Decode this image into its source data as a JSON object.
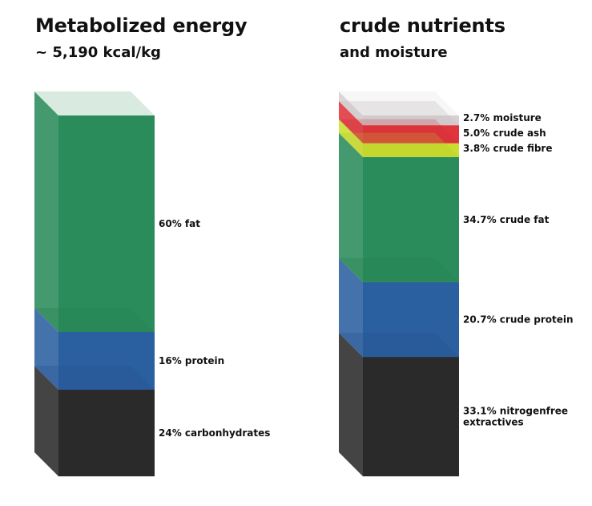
{
  "chart_data": [
    {
      "type": "bar",
      "stacked": true,
      "title": "Metabolized energy",
      "subtitle": "~ 5,190 kcal/kg",
      "segments_bottom_to_top": [
        {
          "name": "24% carbonhydrates",
          "value": 24,
          "color": "#2a2a2a"
        },
        {
          "name": "16% protein",
          "value": 16,
          "color": "#2a5fa0"
        },
        {
          "name": "60% fat",
          "value": 60,
          "color": "#2a8c5a"
        }
      ]
    },
    {
      "type": "bar",
      "stacked": true,
      "title": "crude nutrients",
      "subtitle": "and moisture",
      "segments_bottom_to_top": [
        {
          "name": "33.1% nitrogenfree extractives",
          "lines": [
            "33.1% nitrogenfree",
            "extractives"
          ],
          "value": 33.1,
          "color": "#2a2a2a"
        },
        {
          "name": "20.7% crude protein",
          "value": 20.7,
          "color": "#2a5fa0"
        },
        {
          "name": "34.7% crude fat",
          "value": 34.7,
          "color": "#2a8c5a"
        },
        {
          "name": "3.8% crude fibre",
          "value": 3.8,
          "color": "#c9de2e"
        },
        {
          "name": "5.0% crude ash",
          "value": 5.0,
          "color": "#e0353c"
        },
        {
          "name": "2.7% moisture",
          "value": 2.7,
          "color": "#d7d0d3"
        }
      ]
    }
  ]
}
